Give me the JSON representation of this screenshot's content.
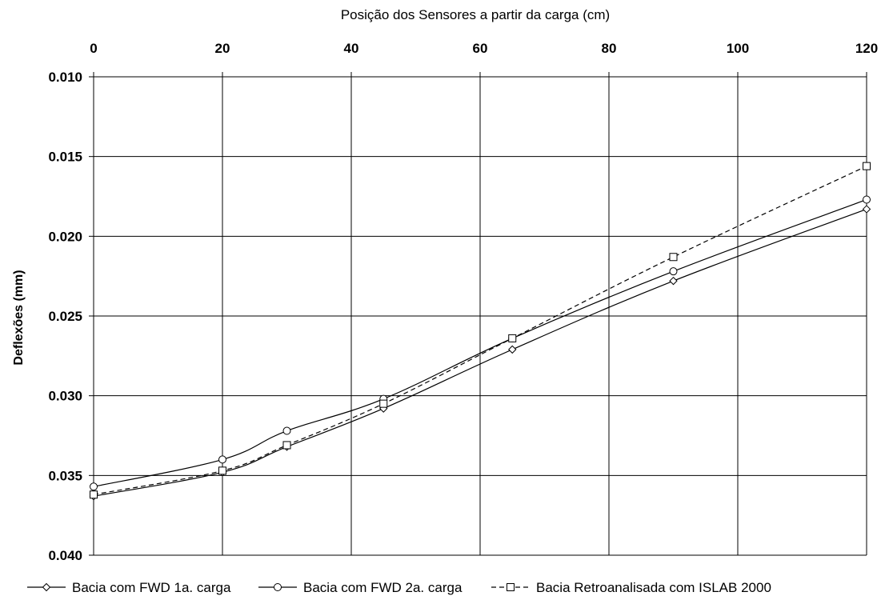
{
  "chart_data": {
    "type": "line",
    "xlabel": "Posição dos Sensores a partir da carga (cm)",
    "ylabel": "Deflexões (mm)",
    "x_axis_position": "top",
    "y_axis_inverted": true,
    "xlim": [
      0,
      120
    ],
    "ylim": [
      0.01,
      0.04
    ],
    "x_ticks": [
      0,
      20,
      40,
      60,
      80,
      100,
      120
    ],
    "y_ticks": [
      0.01,
      0.015,
      0.02,
      0.025,
      0.03,
      0.035,
      0.04
    ],
    "x_tick_labels": [
      "0",
      "20",
      "40",
      "60",
      "80",
      "100",
      "120"
    ],
    "y_tick_labels": [
      "0.010",
      "0.015",
      "0.020",
      "0.025",
      "0.030",
      "0.035",
      "0.040"
    ],
    "grid": true,
    "legend_position": "bottom",
    "series": [
      {
        "name": "Bacia com FWD 1a. carga",
        "marker": "diamond",
        "line_style": "solid",
        "color": "#000000",
        "x": [
          0,
          20,
          30,
          45,
          65,
          90,
          120
        ],
        "y": [
          0.0363,
          0.0348,
          0.0332,
          0.0308,
          0.0271,
          0.0228,
          0.0183
        ]
      },
      {
        "name": "Bacia com FWD 2a. carga",
        "marker": "circle",
        "line_style": "solid",
        "color": "#000000",
        "x": [
          0,
          20,
          30,
          45,
          65,
          90,
          120
        ],
        "y": [
          0.0357,
          0.034,
          0.0322,
          0.0302,
          0.0264,
          0.0222,
          0.0177
        ]
      },
      {
        "name": "Bacia Retroanalisada com ISLAB 2000",
        "marker": "square",
        "line_style": "dashed",
        "color": "#000000",
        "x": [
          0,
          20,
          30,
          45,
          65,
          90,
          120
        ],
        "y": [
          0.0362,
          0.0347,
          0.0331,
          0.0305,
          0.0264,
          0.0213,
          0.0156
        ]
      }
    ]
  }
}
